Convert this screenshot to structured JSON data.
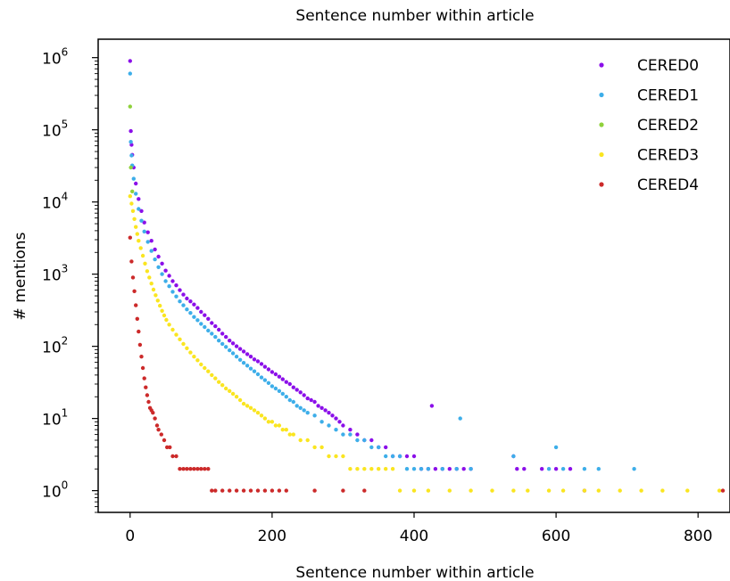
{
  "chart_data": {
    "type": "scatter",
    "title": "Sentence number within article",
    "xlabel": "Sentence number within article",
    "ylabel": "# mentions",
    "xlim": [
      -45,
      845
    ],
    "ylim": [
      0.5,
      1800000
    ],
    "yscale": "log",
    "grid": false,
    "legend_position": "top-right",
    "x_ticks": [
      0,
      200,
      400,
      600,
      800
    ],
    "y_ticks": [
      {
        "value": 1,
        "base": "10",
        "exp": "0"
      },
      {
        "value": 10,
        "base": "10",
        "exp": "1"
      },
      {
        "value": 100,
        "base": "10",
        "exp": "2"
      },
      {
        "value": 1000,
        "base": "10",
        "exp": "3"
      },
      {
        "value": 10000,
        "base": "10",
        "exp": "4"
      },
      {
        "value": 100000,
        "base": "10",
        "exp": "5"
      },
      {
        "value": 1000000,
        "base": "10",
        "exp": "6"
      }
    ],
    "series": [
      {
        "name": "CERED0",
        "color": "#8b0fe9",
        "points": [
          [
            0,
            900000
          ],
          [
            1,
            96000
          ],
          [
            2,
            62000
          ],
          [
            3,
            45000
          ],
          [
            5,
            30000
          ],
          [
            8,
            18000
          ],
          [
            12,
            11000
          ],
          [
            16,
            7500
          ],
          [
            20,
            5200
          ],
          [
            25,
            3800
          ],
          [
            30,
            2900
          ],
          [
            35,
            2200
          ],
          [
            40,
            1750
          ],
          [
            45,
            1400
          ],
          [
            50,
            1120
          ],
          [
            55,
            950
          ],
          [
            60,
            800
          ],
          [
            65,
            700
          ],
          [
            70,
            600
          ],
          [
            75,
            520
          ],
          [
            80,
            460
          ],
          [
            85,
            420
          ],
          [
            90,
            380
          ],
          [
            95,
            340
          ],
          [
            100,
            300
          ],
          [
            105,
            270
          ],
          [
            110,
            240
          ],
          [
            115,
            210
          ],
          [
            120,
            190
          ],
          [
            125,
            170
          ],
          [
            130,
            150
          ],
          [
            135,
            135
          ],
          [
            140,
            120
          ],
          [
            145,
            110
          ],
          [
            150,
            100
          ],
          [
            155,
            92
          ],
          [
            160,
            85
          ],
          [
            165,
            78
          ],
          [
            170,
            72
          ],
          [
            175,
            66
          ],
          [
            180,
            62
          ],
          [
            185,
            57
          ],
          [
            190,
            52
          ],
          [
            195,
            48
          ],
          [
            200,
            44
          ],
          [
            205,
            41
          ],
          [
            210,
            38
          ],
          [
            215,
            35
          ],
          [
            220,
            32
          ],
          [
            225,
            30
          ],
          [
            230,
            27
          ],
          [
            235,
            25
          ],
          [
            240,
            23
          ],
          [
            245,
            21
          ],
          [
            250,
            19
          ],
          [
            255,
            18
          ],
          [
            260,
            17
          ],
          [
            265,
            15
          ],
          [
            270,
            14
          ],
          [
            275,
            13
          ],
          [
            280,
            12
          ],
          [
            285,
            11
          ],
          [
            290,
            10
          ],
          [
            295,
            9
          ],
          [
            300,
            8
          ],
          [
            310,
            7
          ],
          [
            320,
            6
          ],
          [
            330,
            5
          ],
          [
            340,
            5
          ],
          [
            350,
            4
          ],
          [
            360,
            4
          ],
          [
            370,
            3
          ],
          [
            380,
            3
          ],
          [
            390,
            3
          ],
          [
            400,
            3
          ],
          [
            410,
            2
          ],
          [
            420,
            2
          ],
          [
            425,
            15
          ],
          [
            430,
            2
          ],
          [
            440,
            2
          ],
          [
            450,
            2
          ],
          [
            460,
            2
          ],
          [
            470,
            2
          ],
          [
            480,
            2
          ],
          [
            540,
            3
          ],
          [
            545,
            2
          ],
          [
            555,
            2
          ],
          [
            580,
            2
          ],
          [
            600,
            2
          ],
          [
            620,
            2
          ],
          [
            640,
            1
          ]
        ]
      },
      {
        "name": "CERED1",
        "color": "#3daee9",
        "points": [
          [
            0,
            600000
          ],
          [
            1,
            68000
          ],
          [
            2,
            44000
          ],
          [
            3,
            32000
          ],
          [
            5,
            21000
          ],
          [
            8,
            13000
          ],
          [
            12,
            8000
          ],
          [
            16,
            5500
          ],
          [
            20,
            3900
          ],
          [
            25,
            2800
          ],
          [
            30,
            2100
          ],
          [
            35,
            1600
          ],
          [
            40,
            1250
          ],
          [
            45,
            1000
          ],
          [
            50,
            800
          ],
          [
            55,
            680
          ],
          [
            60,
            570
          ],
          [
            65,
            490
          ],
          [
            70,
            420
          ],
          [
            75,
            370
          ],
          [
            80,
            325
          ],
          [
            85,
            290
          ],
          [
            90,
            255
          ],
          [
            95,
            230
          ],
          [
            100,
            205
          ],
          [
            105,
            185
          ],
          [
            110,
            165
          ],
          [
            115,
            150
          ],
          [
            120,
            135
          ],
          [
            125,
            120
          ],
          [
            130,
            108
          ],
          [
            135,
            98
          ],
          [
            140,
            88
          ],
          [
            145,
            80
          ],
          [
            150,
            72
          ],
          [
            155,
            65
          ],
          [
            160,
            59
          ],
          [
            165,
            54
          ],
          [
            170,
            49
          ],
          [
            175,
            45
          ],
          [
            180,
            41
          ],
          [
            185,
            37
          ],
          [
            190,
            34
          ],
          [
            195,
            31
          ],
          [
            200,
            28
          ],
          [
            205,
            26
          ],
          [
            210,
            24
          ],
          [
            215,
            22
          ],
          [
            220,
            20
          ],
          [
            225,
            18
          ],
          [
            230,
            17
          ],
          [
            235,
            15
          ],
          [
            240,
            14
          ],
          [
            245,
            13
          ],
          [
            250,
            12
          ],
          [
            260,
            11
          ],
          [
            270,
            9
          ],
          [
            280,
            8
          ],
          [
            290,
            7
          ],
          [
            300,
            6
          ],
          [
            310,
            6
          ],
          [
            320,
            5
          ],
          [
            330,
            5
          ],
          [
            340,
            4
          ],
          [
            350,
            4
          ],
          [
            360,
            3
          ],
          [
            370,
            3
          ],
          [
            380,
            3
          ],
          [
            390,
            2
          ],
          [
            400,
            2
          ],
          [
            410,
            2
          ],
          [
            420,
            2
          ],
          [
            440,
            2
          ],
          [
            460,
            2
          ],
          [
            465,
            10
          ],
          [
            480,
            2
          ],
          [
            540,
            3
          ],
          [
            590,
            2
          ],
          [
            600,
            4
          ],
          [
            610,
            2
          ],
          [
            640,
            2
          ],
          [
            660,
            2
          ],
          [
            710,
            2
          ]
        ]
      },
      {
        "name": "CERED2",
        "color": "#8fd13b",
        "points": [
          [
            0,
            210000
          ],
          [
            1,
            30000
          ],
          [
            3,
            14000
          ]
        ]
      },
      {
        "name": "CERED3",
        "color": "#fae520",
        "points": [
          [
            0,
            12000
          ],
          [
            2,
            9500
          ],
          [
            4,
            7500
          ],
          [
            6,
            5800
          ],
          [
            8,
            4500
          ],
          [
            10,
            3600
          ],
          [
            12,
            2900
          ],
          [
            15,
            2300
          ],
          [
            18,
            1800
          ],
          [
            21,
            1400
          ],
          [
            24,
            1100
          ],
          [
            27,
            900
          ],
          [
            30,
            740
          ],
          [
            33,
            610
          ],
          [
            36,
            510
          ],
          [
            39,
            430
          ],
          [
            42,
            365
          ],
          [
            45,
            310
          ],
          [
            48,
            268
          ],
          [
            51,
            232
          ],
          [
            55,
            200
          ],
          [
            60,
            170
          ],
          [
            65,
            145
          ],
          [
            70,
            125
          ],
          [
            75,
            108
          ],
          [
            80,
            94
          ],
          [
            85,
            82
          ],
          [
            90,
            72
          ],
          [
            95,
            64
          ],
          [
            100,
            56
          ],
          [
            105,
            50
          ],
          [
            110,
            45
          ],
          [
            115,
            40
          ],
          [
            120,
            36
          ],
          [
            125,
            32
          ],
          [
            130,
            29
          ],
          [
            135,
            26
          ],
          [
            140,
            24
          ],
          [
            145,
            22
          ],
          [
            150,
            20
          ],
          [
            155,
            18
          ],
          [
            160,
            16
          ],
          [
            165,
            15
          ],
          [
            170,
            14
          ],
          [
            175,
            13
          ],
          [
            180,
            12
          ],
          [
            185,
            11
          ],
          [
            190,
            10
          ],
          [
            195,
            9
          ],
          [
            200,
            9
          ],
          [
            205,
            8
          ],
          [
            210,
            8
          ],
          [
            215,
            7
          ],
          [
            220,
            7
          ],
          [
            225,
            6
          ],
          [
            230,
            6
          ],
          [
            240,
            5
          ],
          [
            250,
            5
          ],
          [
            260,
            4
          ],
          [
            270,
            4
          ],
          [
            280,
            3
          ],
          [
            290,
            3
          ],
          [
            300,
            3
          ],
          [
            310,
            2
          ],
          [
            320,
            2
          ],
          [
            330,
            2
          ],
          [
            340,
            2
          ],
          [
            350,
            2
          ],
          [
            360,
            2
          ],
          [
            370,
            2
          ],
          [
            380,
            1
          ],
          [
            400,
            1
          ],
          [
            420,
            1
          ],
          [
            450,
            1
          ],
          [
            480,
            1
          ],
          [
            510,
            1
          ],
          [
            540,
            1
          ],
          [
            560,
            1
          ],
          [
            590,
            1
          ],
          [
            610,
            1
          ],
          [
            640,
            1
          ],
          [
            660,
            1
          ],
          [
            690,
            1
          ],
          [
            720,
            1
          ],
          [
            750,
            1
          ],
          [
            785,
            1
          ],
          [
            830,
            1
          ]
        ]
      },
      {
        "name": "CERED4",
        "color": "#cc2a2a",
        "points": [
          [
            0,
            3200
          ],
          [
            2,
            1500
          ],
          [
            4,
            900
          ],
          [
            6,
            580
          ],
          [
            8,
            370
          ],
          [
            10,
            240
          ],
          [
            12,
            160
          ],
          [
            14,
            105
          ],
          [
            16,
            72
          ],
          [
            18,
            50
          ],
          [
            20,
            36
          ],
          [
            22,
            27
          ],
          [
            24,
            21
          ],
          [
            26,
            17
          ],
          [
            28,
            14
          ],
          [
            30,
            13
          ],
          [
            32,
            12
          ],
          [
            35,
            10
          ],
          [
            38,
            8
          ],
          [
            40,
            7
          ],
          [
            44,
            6
          ],
          [
            48,
            5
          ],
          [
            52,
            4
          ],
          [
            56,
            4
          ],
          [
            60,
            3
          ],
          [
            65,
            3
          ],
          [
            70,
            2
          ],
          [
            75,
            2
          ],
          [
            80,
            2
          ],
          [
            85,
            2
          ],
          [
            90,
            2
          ],
          [
            95,
            2
          ],
          [
            100,
            2
          ],
          [
            105,
            2
          ],
          [
            110,
            2
          ],
          [
            115,
            1
          ],
          [
            120,
            1
          ],
          [
            130,
            1
          ],
          [
            140,
            1
          ],
          [
            150,
            1
          ],
          [
            160,
            1
          ],
          [
            170,
            1
          ],
          [
            180,
            1
          ],
          [
            190,
            1
          ],
          [
            200,
            1
          ],
          [
            210,
            1
          ],
          [
            220,
            1
          ],
          [
            260,
            1
          ],
          [
            300,
            1
          ],
          [
            330,
            1
          ],
          [
            835,
            1
          ]
        ]
      }
    ]
  }
}
